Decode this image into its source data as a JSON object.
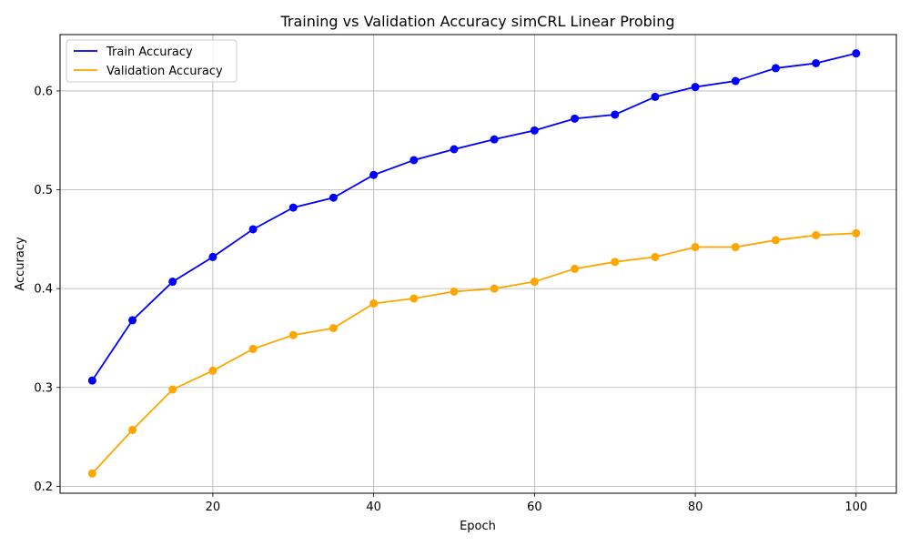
{
  "chart_data": {
    "type": "line",
    "title": "Training vs Validation Accuracy simCRL Linear Probing",
    "xlabel": "Epoch",
    "ylabel": "Accuracy",
    "xlim": [
      1,
      105
    ],
    "ylim": [
      0.193,
      0.657
    ],
    "xticks": [
      20,
      40,
      60,
      80,
      100
    ],
    "yticks": [
      0.2,
      0.3,
      0.4,
      0.5,
      0.6
    ],
    "xtick_labels": [
      "20",
      "40",
      "60",
      "80",
      "100"
    ],
    "ytick_labels": [
      "0.2",
      "0.3",
      "0.4",
      "0.5",
      "0.6"
    ],
    "grid": true,
    "legend_position": "top-left",
    "x": [
      5,
      10,
      15,
      20,
      25,
      30,
      35,
      40,
      45,
      50,
      55,
      60,
      65,
      70,
      75,
      80,
      85,
      90,
      95,
      100
    ],
    "series": [
      {
        "name": "Train Accuracy",
        "color": "#0000ff",
        "values": [
          0.307,
          0.368,
          0.407,
          0.432,
          0.46,
          0.482,
          0.492,
          0.515,
          0.53,
          0.541,
          0.551,
          0.56,
          0.572,
          0.576,
          0.594,
          0.604,
          0.61,
          0.623,
          0.628,
          0.638
        ]
      },
      {
        "name": "Validation Accuracy",
        "color": "#ffa500",
        "values": [
          0.213,
          0.257,
          0.298,
          0.317,
          0.339,
          0.353,
          0.36,
          0.385,
          0.39,
          0.397,
          0.4,
          0.407,
          0.42,
          0.427,
          0.432,
          0.442,
          0.442,
          0.449,
          0.454,
          0.456
        ]
      }
    ]
  }
}
